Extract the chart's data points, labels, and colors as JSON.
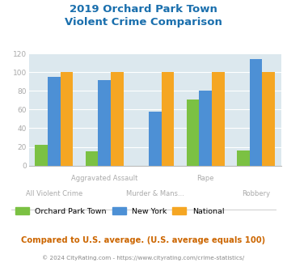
{
  "title": "2019 Orchard Park Town\nViolent Crime Comparison",
  "town_values": [
    22,
    15,
    0,
    71,
    16
  ],
  "ny_values": [
    95,
    91,
    58,
    80,
    114
  ],
  "national_values": [
    100,
    100,
    100,
    100,
    100
  ],
  "town_color": "#7bc143",
  "ny_color": "#4d90d5",
  "national_color": "#f5a623",
  "bg_color": "#dce8ee",
  "ylim": [
    0,
    120
  ],
  "yticks": [
    0,
    20,
    40,
    60,
    80,
    100,
    120
  ],
  "legend_labels": [
    "Orchard Park Town",
    "New York",
    "National"
  ],
  "footnote1": "Compared to U.S. average. (U.S. average equals 100)",
  "footnote2": "© 2024 CityRating.com - https://www.cityrating.com/crime-statistics/",
  "title_color": "#1a6fad",
  "footnote1_color": "#cc6600",
  "footnote2_color": "#888888",
  "xtick_color": "#aaaaaa",
  "label_top_row": [
    "",
    "Aggravated Assault",
    "",
    "Rape",
    ""
  ],
  "label_bot_row": [
    "All Violent Crime",
    "",
    "Murder & Mans...",
    "",
    "Robbery"
  ],
  "group_positions": [
    0,
    1,
    2,
    3,
    4
  ]
}
